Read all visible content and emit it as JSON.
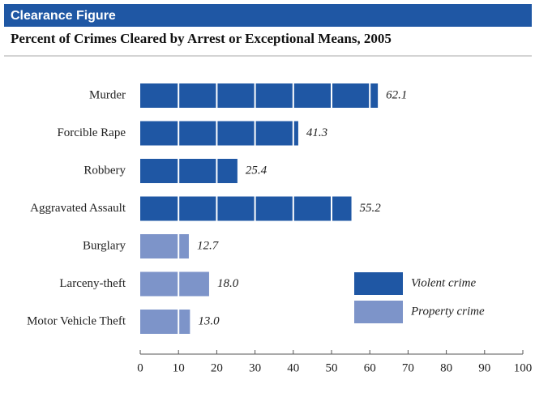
{
  "header": "Clearance Figure",
  "chart_data": {
    "type": "hbar",
    "title": "Percent of Crimes Cleared by Arrest or Exceptional Means, 2005",
    "categories": [
      "Murder",
      "Forcible Rape",
      "Robbery",
      "Aggravated Assault",
      "Burglary",
      "Larceny-theft",
      "Motor Vehicle Theft"
    ],
    "series": [
      {
        "name": "Violent crime",
        "color": "#1f57a4",
        "values": [
          62.1,
          41.3,
          25.4,
          55.2,
          null,
          null,
          null
        ],
        "value_labels": [
          "62.1",
          "41.3",
          "25.4",
          "55.2",
          null,
          null,
          null
        ]
      },
      {
        "name": "Property crime",
        "color": "#7d94c9",
        "values": [
          null,
          null,
          null,
          null,
          12.7,
          18.0,
          13.0
        ],
        "value_labels": [
          null,
          null,
          null,
          null,
          "12.7",
          "18.0",
          "13.0"
        ]
      }
    ],
    "xlim": [
      0,
      100
    ],
    "xticks": [
      0,
      10,
      20,
      30,
      40,
      50,
      60,
      70,
      80,
      90,
      100
    ],
    "legend": "lower right"
  }
}
